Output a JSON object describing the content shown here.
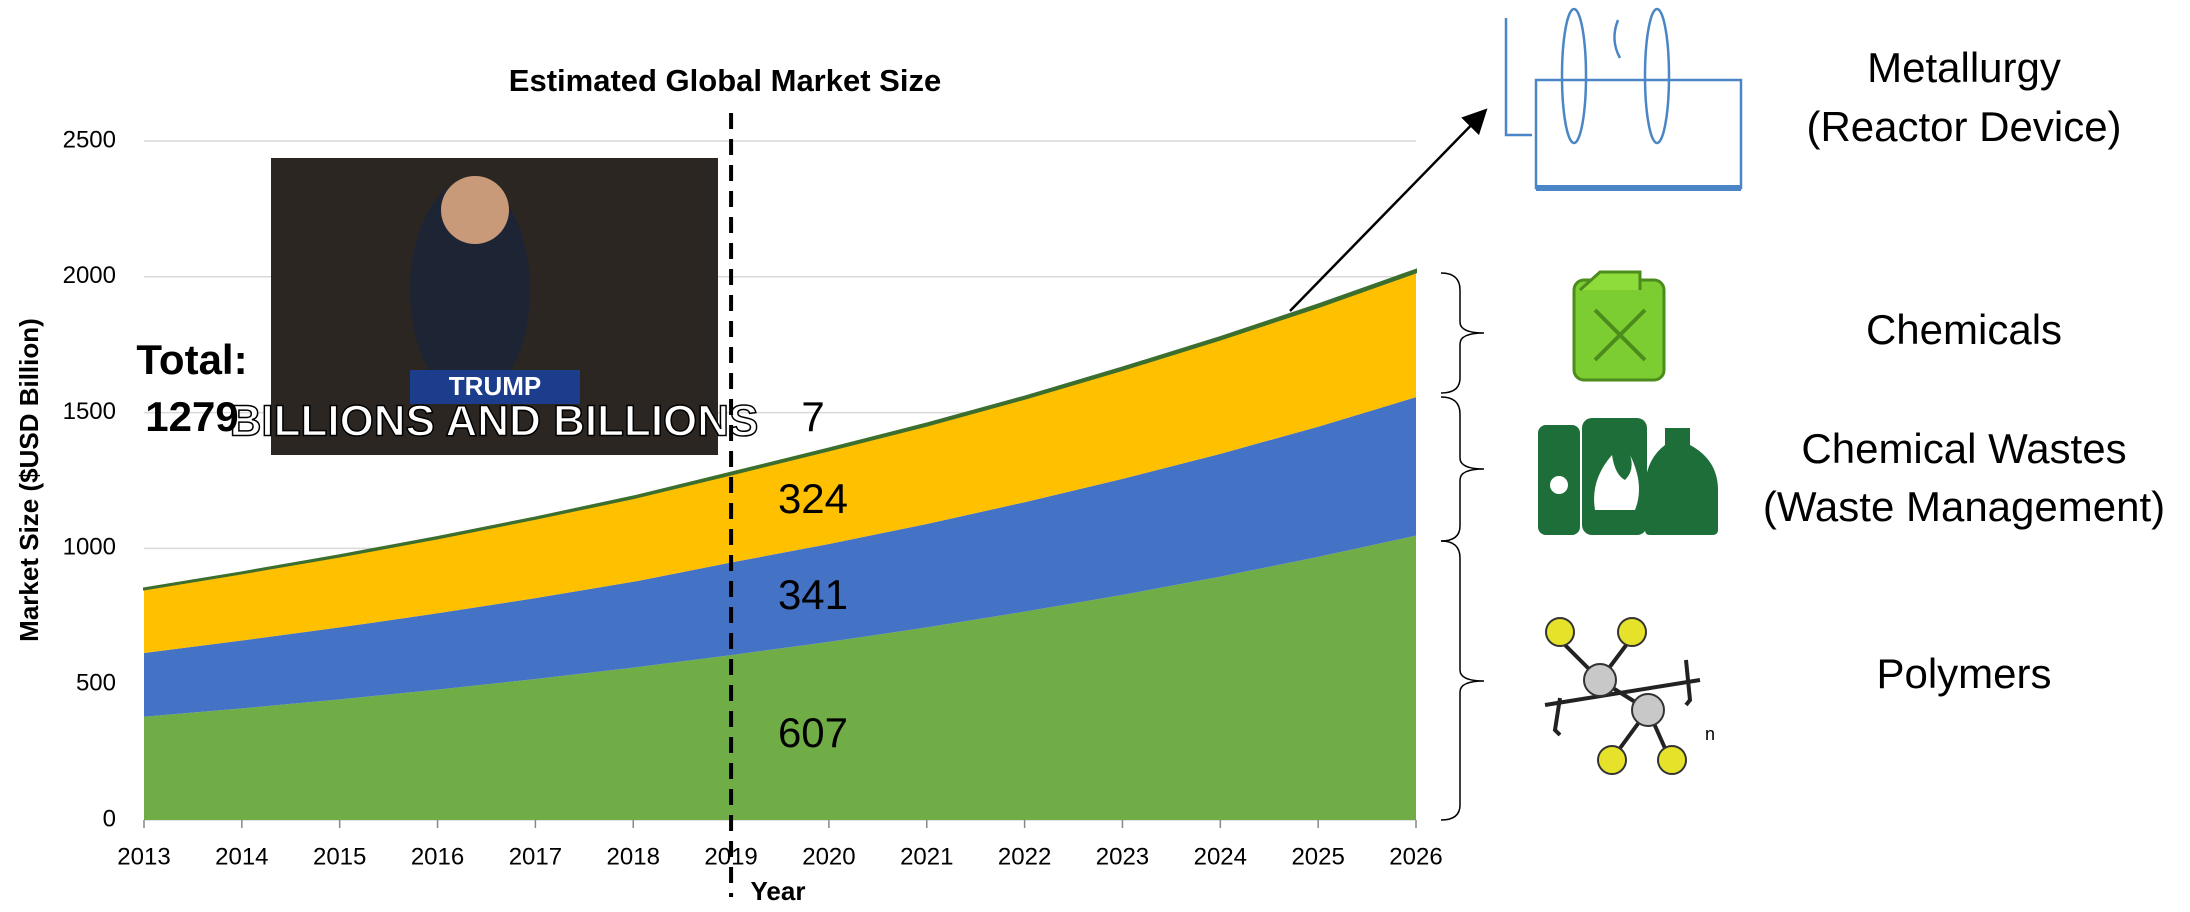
{
  "chart_data": {
    "type": "stacked_area",
    "title": "Estimated Global Market Size",
    "x_label": "Year",
    "y_label": "Market Size ($USD Billion)",
    "x": [
      2013,
      2014,
      2015,
      2016,
      2017,
      2018,
      2019,
      2020,
      2021,
      2022,
      2023,
      2024,
      2025,
      2026
    ],
    "xlim": [
      2013,
      2026
    ],
    "xticks": [
      2013,
      2014,
      2015,
      2016,
      2017,
      2018,
      2019,
      2020,
      2021,
      2022,
      2023,
      2024,
      2025,
      2026
    ],
    "ylim": [
      0,
      2500
    ],
    "yticks": [
      0,
      500,
      1000,
      1500,
      2000,
      2500
    ],
    "grid": true,
    "marker_x": 2019,
    "total_label": "Total:",
    "total": 1279,
    "image_caption": "BILLIONS AND BILLIONS",
    "image_sign": "TRUMP",
    "series": [
      {
        "name": "Polymers",
        "color": "#70ad47",
        "values": [
          380,
          411,
          444,
          480,
          519,
          561,
          607,
          656,
          709,
          767,
          829,
          896,
          969,
          1047
        ]
      },
      {
        "name": "Chemical Wastes",
        "note": "(Waste Management)",
        "color": "#4472c4",
        "values": [
          235,
          250,
          265,
          281,
          298,
          316,
          341,
          360,
          381,
          403,
          427,
          452,
          479,
          510
        ]
      },
      {
        "name": "Chemicals",
        "color": "#ffc000",
        "values": [
          234,
          247,
          261,
          276,
          292,
          308,
          324,
          345,
          362,
          381,
          401,
          421,
          440,
          459
        ]
      },
      {
        "name": "Metallurgy",
        "note": "(Reactor Device)",
        "color": "#3b6e2f",
        "values": [
          4,
          4,
          5,
          5,
          5,
          6,
          7,
          7,
          8,
          8,
          9,
          9,
          10,
          10
        ]
      }
    ]
  }
}
